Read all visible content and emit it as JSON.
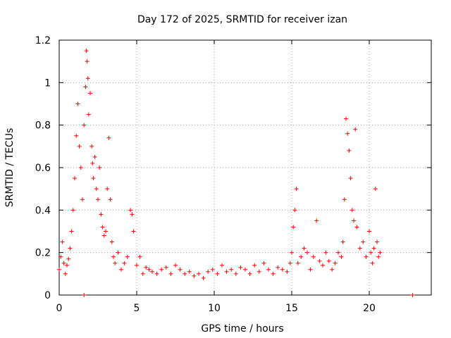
{
  "chart_data": {
    "type": "scatter",
    "title": "Day 172 of 2025, SRMTID for receiver izan",
    "xlabel": "GPS time / hours",
    "ylabel": "SRMTID / TECUs",
    "xlim": [
      0,
      24
    ],
    "ylim": [
      0,
      1.2
    ],
    "xticks": [
      0,
      5,
      10,
      15,
      20
    ],
    "yticks": [
      0,
      0.2,
      0.4,
      0.6,
      0.8,
      1,
      1.2
    ],
    "xtick_labels": [
      "0",
      "5",
      "10",
      "15",
      "20"
    ],
    "ytick_labels": [
      "0",
      "0.2",
      "0.4",
      "0.6",
      "0.8",
      "1",
      "1.2"
    ],
    "grid": true,
    "marker": "+",
    "series": [
      {
        "name": "SRMTID",
        "color": "#ff0000",
        "x": [
          0.0,
          0.1,
          0.2,
          0.3,
          0.4,
          0.5,
          0.6,
          0.7,
          0.8,
          0.9,
          1.0,
          1.1,
          1.2,
          1.3,
          1.4,
          1.5,
          1.6,
          1.7,
          1.75,
          1.8,
          1.85,
          1.9,
          2.0,
          2.1,
          2.15,
          2.2,
          2.3,
          2.4,
          2.5,
          2.6,
          2.7,
          2.8,
          2.9,
          3.0,
          3.1,
          3.2,
          3.3,
          3.4,
          3.5,
          3.6,
          3.8,
          4.0,
          4.2,
          4.4,
          4.6,
          4.7,
          4.8,
          5.0,
          5.2,
          5.4,
          5.6,
          5.8,
          6.0,
          6.3,
          6.6,
          6.9,
          7.2,
          7.5,
          7.8,
          8.1,
          8.4,
          8.7,
          9.0,
          9.3,
          9.6,
          9.9,
          10.2,
          10.5,
          10.8,
          11.1,
          11.4,
          11.7,
          12.0,
          12.3,
          12.6,
          12.9,
          13.2,
          13.5,
          13.8,
          14.1,
          14.4,
          14.7,
          14.9,
          15.0,
          15.1,
          15.2,
          15.3,
          15.4,
          15.6,
          15.8,
          16.0,
          16.2,
          16.4,
          16.6,
          16.8,
          17.0,
          17.2,
          17.4,
          17.6,
          17.8,
          18.0,
          18.2,
          18.3,
          18.4,
          18.5,
          18.6,
          18.7,
          18.8,
          18.9,
          19.0,
          19.1,
          19.2,
          19.4,
          19.6,
          19.8,
          20.0,
          20.1,
          20.2,
          20.3,
          20.4,
          20.5,
          20.6,
          20.7,
          1.6,
          22.8
        ],
        "values": [
          0.12,
          0.18,
          0.25,
          0.15,
          0.1,
          0.14,
          0.17,
          0.22,
          0.3,
          0.4,
          0.55,
          0.75,
          0.9,
          0.7,
          0.6,
          0.45,
          0.8,
          0.98,
          1.15,
          1.1,
          1.02,
          0.85,
          0.95,
          0.7,
          0.62,
          0.55,
          0.65,
          0.5,
          0.45,
          0.6,
          0.38,
          0.32,
          0.28,
          0.3,
          0.5,
          0.74,
          0.45,
          0.25,
          0.18,
          0.15,
          0.2,
          0.12,
          0.15,
          0.18,
          0.4,
          0.38,
          0.3,
          0.14,
          0.18,
          0.1,
          0.13,
          0.12,
          0.11,
          0.1,
          0.12,
          0.13,
          0.1,
          0.14,
          0.12,
          0.1,
          0.11,
          0.09,
          0.1,
          0.08,
          0.11,
          0.12,
          0.1,
          0.14,
          0.11,
          0.12,
          0.1,
          0.13,
          0.12,
          0.1,
          0.14,
          0.11,
          0.15,
          0.12,
          0.1,
          0.13,
          0.12,
          0.11,
          0.15,
          0.2,
          0.32,
          0.4,
          0.5,
          0.15,
          0.18,
          0.22,
          0.2,
          0.12,
          0.18,
          0.35,
          0.16,
          0.14,
          0.2,
          0.16,
          0.12,
          0.15,
          0.2,
          0.18,
          0.25,
          0.45,
          0.83,
          0.76,
          0.68,
          0.55,
          0.4,
          0.35,
          0.78,
          0.32,
          0.22,
          0.25,
          0.18,
          0.3,
          0.2,
          0.15,
          0.22,
          0.5,
          0.25,
          0.18,
          0.2,
          0.0,
          0.0
        ]
      }
    ]
  }
}
